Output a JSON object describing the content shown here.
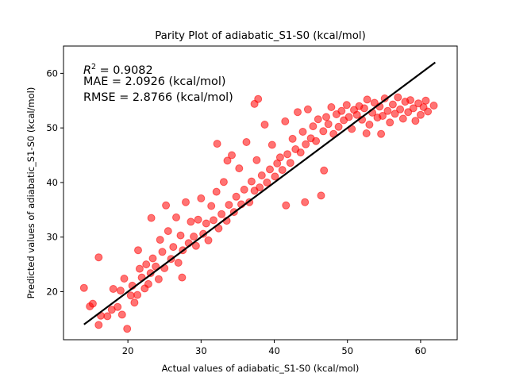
{
  "chart_data": {
    "type": "scatter",
    "title": "Parity Plot of adiabatic_S1-S0 (kcal/mol)",
    "xlabel": "Actual values of adiabatic_S1-S0 (kcal/mol)",
    "ylabel": "Predicted values of adiabatic_S1-S0 (kcal/mol)",
    "xlim": [
      11.2,
      65.0
    ],
    "ylim": [
      11.2,
      65.0
    ],
    "xticks": [
      20,
      30,
      40,
      50,
      60
    ],
    "yticks": [
      20,
      30,
      40,
      50,
      60
    ],
    "grid": false,
    "stats": {
      "r2_prefix": "R",
      "r2_sup": "2",
      "r2_value": " = 0.9082",
      "mae": "MAE = 2.0926 (kcal/mol)",
      "rmse": "RMSE = 2.8766 (kcal/mol)"
    },
    "reference_line": {
      "x": [
        14,
        62
      ],
      "y": [
        14,
        62
      ],
      "color": "#000000"
    },
    "series": [
      {
        "color": "#ff0000",
        "opacity": 0.55,
        "points": [
          [
            14.0,
            20.7
          ],
          [
            14.8,
            17.3
          ],
          [
            15.2,
            17.8
          ],
          [
            16.0,
            26.3
          ],
          [
            16.3,
            15.6
          ],
          [
            16.0,
            13.9
          ],
          [
            17.2,
            15.5
          ],
          [
            17.8,
            16.7
          ],
          [
            18.0,
            20.5
          ],
          [
            18.6,
            17.2
          ],
          [
            19.0,
            20.2
          ],
          [
            19.2,
            15.8
          ],
          [
            19.5,
            22.4
          ],
          [
            19.9,
            13.2
          ],
          [
            20.4,
            19.3
          ],
          [
            20.6,
            21.1
          ],
          [
            20.9,
            18.0
          ],
          [
            21.3,
            19.4
          ],
          [
            21.6,
            24.2
          ],
          [
            21.9,
            22.6
          ],
          [
            22.3,
            20.6
          ],
          [
            22.5,
            25.0
          ],
          [
            22.8,
            21.4
          ],
          [
            23.1,
            23.4
          ],
          [
            23.4,
            26.1
          ],
          [
            23.8,
            24.6
          ],
          [
            24.2,
            22.3
          ],
          [
            24.4,
            29.5
          ],
          [
            24.7,
            27.3
          ],
          [
            25.0,
            24.3
          ],
          [
            25.2,
            35.8
          ],
          [
            25.5,
            31.1
          ],
          [
            25.9,
            26.0
          ],
          [
            26.2,
            28.2
          ],
          [
            26.6,
            33.6
          ],
          [
            26.9,
            25.3
          ],
          [
            27.2,
            30.3
          ],
          [
            27.5,
            27.6
          ],
          [
            27.9,
            36.4
          ],
          [
            28.3,
            28.9
          ],
          [
            28.6,
            32.8
          ],
          [
            29.0,
            30.1
          ],
          [
            29.3,
            28.4
          ],
          [
            29.6,
            33.2
          ],
          [
            30.0,
            37.1
          ],
          [
            30.3,
            30.6
          ],
          [
            30.7,
            32.5
          ],
          [
            31.0,
            29.4
          ],
          [
            31.4,
            35.7
          ],
          [
            31.7,
            33.1
          ],
          [
            32.1,
            38.3
          ],
          [
            32.4,
            31.6
          ],
          [
            32.8,
            34.2
          ],
          [
            33.1,
            40.1
          ],
          [
            33.5,
            33.0
          ],
          [
            33.8,
            35.9
          ],
          [
            34.2,
            45.0
          ],
          [
            34.5,
            34.6
          ],
          [
            34.8,
            37.4
          ],
          [
            35.2,
            42.6
          ],
          [
            35.5,
            36.0
          ],
          [
            35.9,
            38.7
          ],
          [
            36.2,
            47.4
          ],
          [
            36.6,
            36.4
          ],
          [
            36.9,
            40.2
          ],
          [
            37.3,
            38.5
          ],
          [
            37.6,
            44.1
          ],
          [
            38.0,
            39.1
          ],
          [
            38.3,
            41.3
          ],
          [
            38.7,
            50.6
          ],
          [
            39.0,
            40.0
          ],
          [
            39.4,
            42.4
          ],
          [
            39.7,
            46.9
          ],
          [
            40.1,
            41.1
          ],
          [
            40.4,
            43.5
          ],
          [
            40.8,
            44.6
          ],
          [
            41.1,
            42.3
          ],
          [
            41.5,
            51.2
          ],
          [
            41.8,
            45.2
          ],
          [
            42.2,
            43.6
          ],
          [
            42.5,
            48.0
          ],
          [
            42.9,
            46.1
          ],
          [
            43.2,
            52.9
          ],
          [
            43.6,
            45.5
          ],
          [
            43.9,
            49.3
          ],
          [
            44.3,
            47.0
          ],
          [
            44.6,
            53.4
          ],
          [
            45.0,
            48.1
          ],
          [
            45.3,
            50.3
          ],
          [
            45.7,
            47.6
          ],
          [
            46.0,
            51.6
          ],
          [
            46.4,
            37.6
          ],
          [
            46.7,
            49.4
          ],
          [
            47.1,
            52.0
          ],
          [
            47.4,
            50.7
          ],
          [
            47.8,
            53.8
          ],
          [
            48.1,
            48.9
          ],
          [
            48.5,
            52.5
          ],
          [
            48.8,
            50.2
          ],
          [
            49.2,
            53.1
          ],
          [
            49.5,
            51.4
          ],
          [
            49.9,
            54.2
          ],
          [
            50.2,
            52.0
          ],
          [
            50.6,
            49.8
          ],
          [
            50.9,
            53.3
          ],
          [
            51.3,
            52.4
          ],
          [
            51.6,
            54.0
          ],
          [
            52.0,
            51.5
          ],
          [
            52.3,
            53.6
          ],
          [
            52.7,
            55.2
          ],
          [
            53.0,
            50.6
          ],
          [
            53.4,
            52.8
          ],
          [
            53.7,
            54.6
          ],
          [
            54.1,
            51.9
          ],
          [
            54.4,
            53.9
          ],
          [
            54.8,
            52.2
          ],
          [
            55.1,
            55.4
          ],
          [
            55.5,
            53.1
          ],
          [
            55.8,
            51.0
          ],
          [
            56.2,
            54.3
          ],
          [
            56.5,
            52.6
          ],
          [
            56.9,
            55.6
          ],
          [
            57.2,
            53.4
          ],
          [
            57.6,
            51.7
          ],
          [
            57.9,
            54.8
          ],
          [
            58.3,
            52.9
          ],
          [
            58.6,
            55.1
          ],
          [
            59.0,
            53.6
          ],
          [
            59.3,
            51.3
          ],
          [
            59.7,
            54.5
          ],
          [
            60.0,
            52.4
          ],
          [
            60.4,
            53.8
          ],
          [
            60.7,
            55.0
          ],
          [
            61.0,
            53.0
          ],
          [
            61.8,
            54.1
          ],
          [
            37.8,
            55.3
          ],
          [
            37.3,
            54.4
          ],
          [
            21.4,
            27.6
          ],
          [
            23.2,
            33.5
          ],
          [
            44.2,
            36.4
          ],
          [
            41.6,
            35.8
          ],
          [
            54.6,
            48.9
          ],
          [
            52.6,
            49.0
          ],
          [
            32.2,
            47.1
          ],
          [
            33.6,
            44.0
          ],
          [
            27.4,
            22.6
          ],
          [
            46.8,
            42.2
          ]
        ]
      }
    ]
  }
}
